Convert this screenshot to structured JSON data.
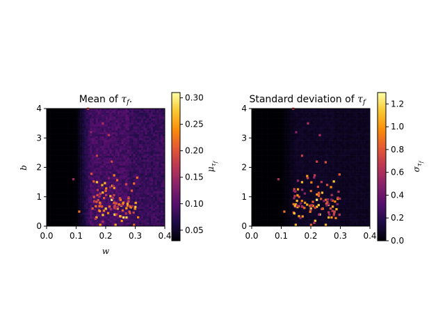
{
  "figure": {
    "background": "#ffffff",
    "colormap": "inferno"
  },
  "chart_data": [
    {
      "type": "heatmap",
      "title_text": "Mean of ",
      "title_math": "τ",
      "title_sub": "f",
      "title_tail": ".",
      "xlabel": "w",
      "ylabel": "b",
      "xlim": [
        0.0,
        0.4
      ],
      "ylim": [
        0,
        4
      ],
      "xticks": [
        "0.0",
        "0.1",
        "0.2",
        "0.3",
        "0.4"
      ],
      "yticks": [
        "0",
        "1",
        "2",
        "3",
        "4"
      ],
      "colorbar": {
        "label_main": "μ",
        "label_sub": "τ",
        "label_subsub": "f",
        "min": 0.03,
        "max": 0.31,
        "ticks": [
          "0.05",
          "0.10",
          "0.15",
          "0.20",
          "0.25",
          "0.30"
        ]
      },
      "pattern": {
        "x_transition": [
          0.1,
          0.15
        ],
        "background_level": 0.09,
        "cluster_center": [
          0.23,
          0.7
        ],
        "hot_spots": [
          [
            0.14,
            4.0,
            0.2
          ],
          [
            0.11,
            0.5,
            0.22
          ],
          [
            0.09,
            1.6,
            0.15
          ],
          [
            0.17,
            1.5,
            0.27
          ],
          [
            0.18,
            0.8,
            0.24
          ],
          [
            0.2,
            0.6,
            0.28
          ],
          [
            0.22,
            0.9,
            0.3
          ],
          [
            0.23,
            0.4,
            0.31
          ],
          [
            0.26,
            0.3,
            0.29
          ],
          [
            0.27,
            0.3,
            0.28
          ],
          [
            0.19,
            3.5,
            0.16
          ],
          [
            0.21,
            3.1,
            0.17
          ],
          [
            0.15,
            3.2,
            0.14
          ],
          [
            0.17,
            2.4,
            0.18
          ],
          [
            0.22,
            2.2,
            0.19
          ],
          [
            0.2,
            1.2,
            0.21
          ],
          [
            0.24,
            0.6,
            0.26
          ],
          [
            0.16,
            1.0,
            0.2
          ],
          [
            0.25,
            0.9,
            0.23
          ],
          [
            0.28,
            0.5,
            0.2
          ]
        ]
      }
    },
    {
      "type": "heatmap",
      "title_text": "Standard deviation of ",
      "title_math": "τ",
      "title_sub": "f",
      "title_tail": "",
      "xlabel": "",
      "ylabel": "",
      "xlim": [
        0.0,
        0.4
      ],
      "ylim": [
        0,
        4
      ],
      "xticks": [
        "0.0",
        "0.1",
        "0.2",
        "0.3",
        "0.4"
      ],
      "yticks": [
        "0",
        "1",
        "2",
        "3",
        "4"
      ],
      "colorbar": {
        "label_main": "σ",
        "label_sub": "τ",
        "label_subsub": "f",
        "min": 0.0,
        "max": 1.3,
        "ticks": [
          "0.0",
          "0.2",
          "0.4",
          "0.6",
          "0.8",
          "1.0",
          "1.2"
        ]
      },
      "pattern": {
        "x_transition": [
          0.1,
          0.15
        ],
        "background_level": 0.08,
        "cluster_center": [
          0.22,
          0.7
        ],
        "hot_spots": [
          [
            0.14,
            4.0,
            0.7
          ],
          [
            0.11,
            0.5,
            0.9
          ],
          [
            0.09,
            1.6,
            0.6
          ],
          [
            0.17,
            1.5,
            1.1
          ],
          [
            0.18,
            0.8,
            1.0
          ],
          [
            0.2,
            0.6,
            1.2
          ],
          [
            0.22,
            0.9,
            1.25
          ],
          [
            0.23,
            0.4,
            1.3
          ],
          [
            0.26,
            0.3,
            1.1
          ],
          [
            0.27,
            0.3,
            1.0
          ],
          [
            0.19,
            3.5,
            0.6
          ],
          [
            0.23,
            3.1,
            0.6
          ],
          [
            0.15,
            3.2,
            0.5
          ],
          [
            0.17,
            2.4,
            0.7
          ],
          [
            0.22,
            2.2,
            0.7
          ],
          [
            0.2,
            1.2,
            0.85
          ],
          [
            0.24,
            0.6,
            1.0
          ],
          [
            0.16,
            1.0,
            0.8
          ],
          [
            0.25,
            0.9,
            0.9
          ],
          [
            0.28,
            0.5,
            0.75
          ]
        ]
      }
    }
  ]
}
